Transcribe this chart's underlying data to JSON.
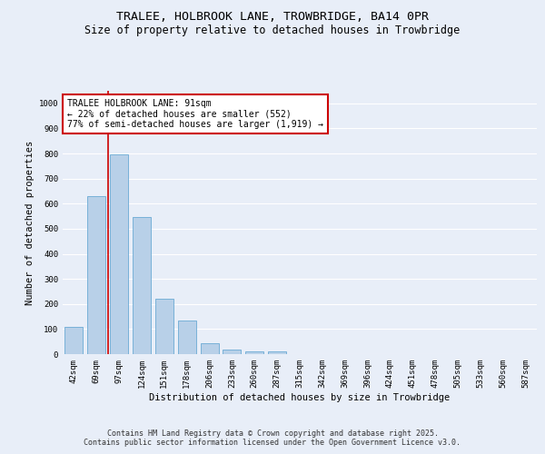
{
  "title_line1": "TRALEE, HOLBROOK LANE, TROWBRIDGE, BA14 0PR",
  "title_line2": "Size of property relative to detached houses in Trowbridge",
  "xlabel": "Distribution of detached houses by size in Trowbridge",
  "ylabel": "Number of detached properties",
  "categories": [
    "42sqm",
    "69sqm",
    "97sqm",
    "124sqm",
    "151sqm",
    "178sqm",
    "206sqm",
    "233sqm",
    "260sqm",
    "287sqm",
    "315sqm",
    "342sqm",
    "369sqm",
    "396sqm",
    "424sqm",
    "451sqm",
    "478sqm",
    "505sqm",
    "533sqm",
    "560sqm",
    "587sqm"
  ],
  "bar_values": [
    108,
    630,
    795,
    548,
    222,
    135,
    42,
    17,
    10,
    10,
    0,
    0,
    0,
    0,
    0,
    0,
    0,
    0,
    0,
    0,
    0
  ],
  "bar_color": "#b8d0e8",
  "bar_edge_color": "#6aaad4",
  "vline_x": 1.5,
  "vline_color": "#cc0000",
  "annotation_text": "TRALEE HOLBROOK LANE: 91sqm\n← 22% of detached houses are smaller (552)\n77% of semi-detached houses are larger (1,919) →",
  "annotation_box_color": "#ffffff",
  "annotation_box_edge": "#cc0000",
  "ylim": [
    0,
    1050
  ],
  "yticks": [
    0,
    100,
    200,
    300,
    400,
    500,
    600,
    700,
    800,
    900,
    1000
  ],
  "background_color": "#e8eef8",
  "plot_bg_color": "#e8eef8",
  "grid_color": "#ffffff",
  "footer_line1": "Contains HM Land Registry data © Crown copyright and database right 2025.",
  "footer_line2": "Contains public sector information licensed under the Open Government Licence v3.0.",
  "title_fontsize": 9.5,
  "subtitle_fontsize": 8.5,
  "axis_label_fontsize": 7.5,
  "tick_fontsize": 6.5,
  "annotation_fontsize": 7,
  "footer_fontsize": 6
}
